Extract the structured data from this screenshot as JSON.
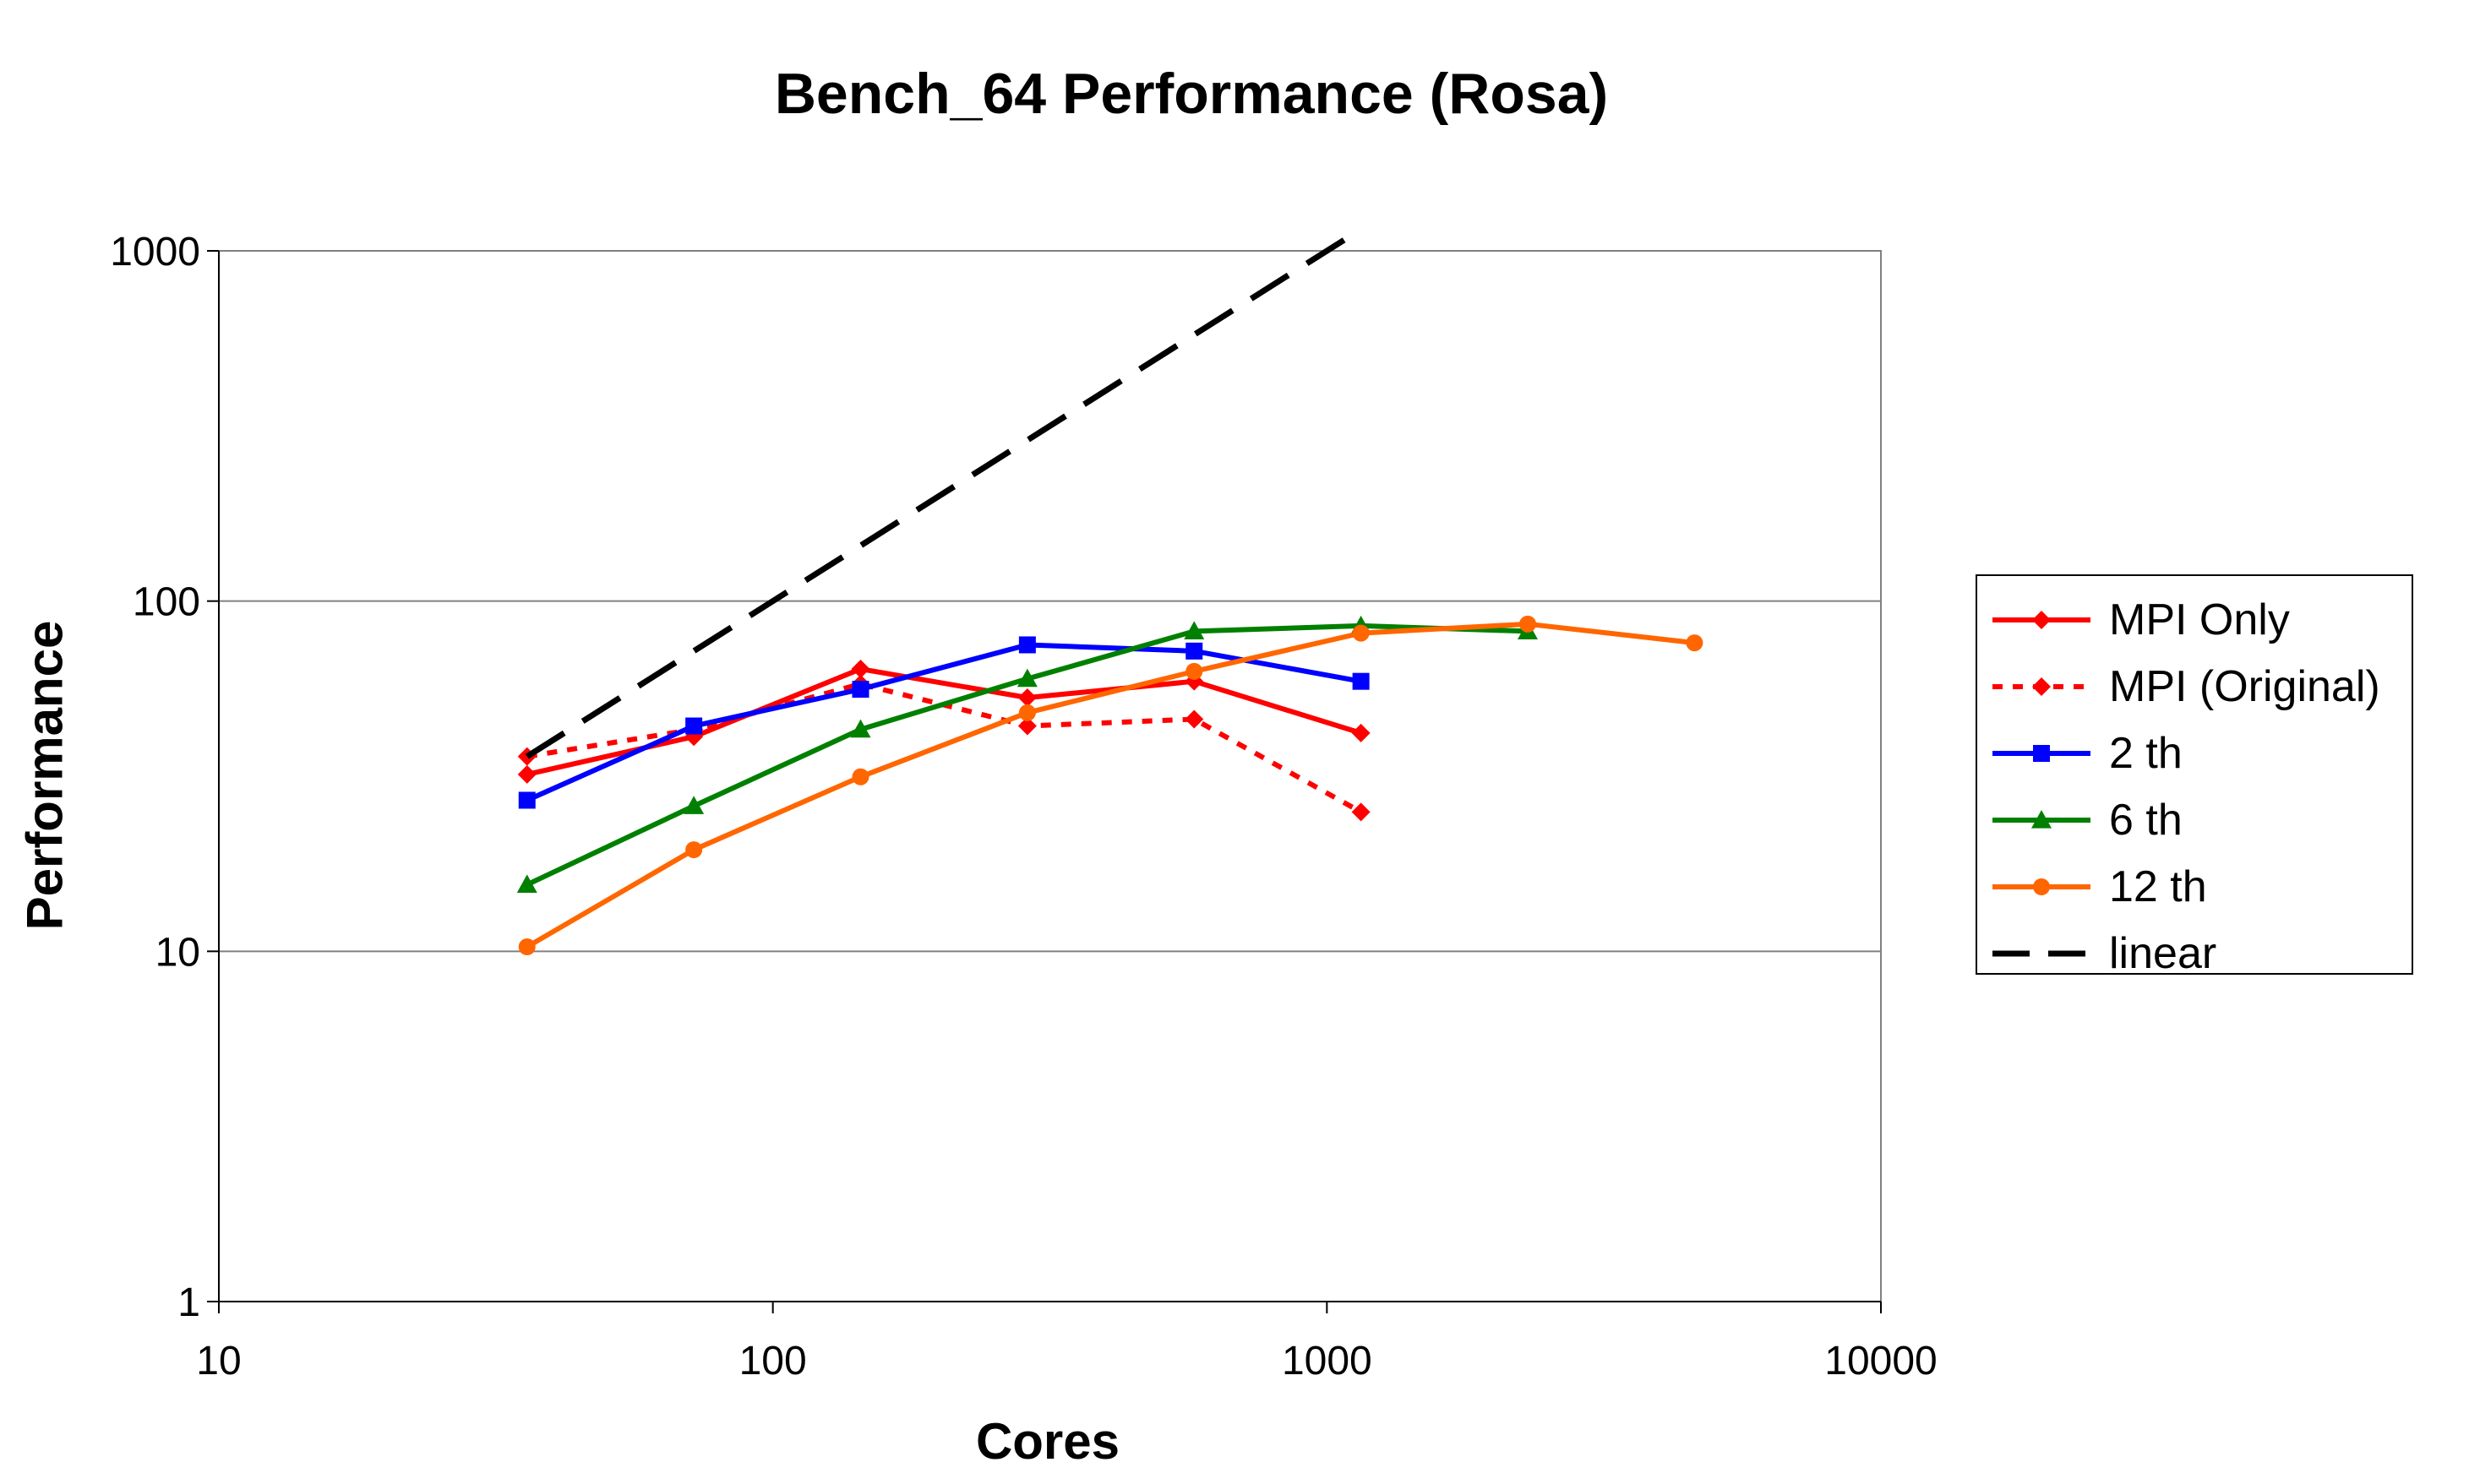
{
  "chart_data": {
    "type": "line",
    "title": "Bench_64 Performance (Rosa)",
    "xlabel": "Cores",
    "ylabel": "Performance",
    "xscale": "log",
    "yscale": "log",
    "xlim": [
      10,
      10000
    ],
    "ylim": [
      1,
      1000
    ],
    "xticks": [
      "10",
      "100",
      "1000",
      "10000"
    ],
    "yticks": [
      "1",
      "10",
      "100",
      "1000"
    ],
    "grid": "horizontal major",
    "legend_position": "right",
    "series": [
      {
        "name": "MPI Only",
        "color": "#ff0000",
        "dash": "solid",
        "marker": "diamond",
        "x": [
          36,
          72,
          144,
          288,
          576,
          1152
        ],
        "y": [
          32,
          41,
          64,
          53,
          59,
          42
        ]
      },
      {
        "name": "MPI (Original)",
        "color": "#ff0000",
        "dash": "dotted",
        "marker": "diamond",
        "x": [
          36,
          72,
          144,
          288,
          576,
          1152
        ],
        "y": [
          36,
          43,
          58,
          44,
          46,
          25
        ]
      },
      {
        "name": "2 th",
        "color": "#0000ff",
        "dash": "solid",
        "marker": "square",
        "x": [
          36,
          72,
          144,
          288,
          576,
          1152
        ],
        "y": [
          27,
          44,
          56,
          75,
          72,
          59
        ]
      },
      {
        "name": "6 th",
        "color": "#008000",
        "dash": "solid",
        "marker": "triangle",
        "x": [
          36,
          72,
          144,
          288,
          576,
          1152,
          2304
        ],
        "y": [
          15.5,
          26,
          43,
          60,
          82,
          85,
          82
        ]
      },
      {
        "name": "12 th",
        "color": "#ff6600",
        "dash": "solid",
        "marker": "circle",
        "x": [
          36,
          72,
          144,
          288,
          576,
          1152,
          2304,
          4608
        ],
        "y": [
          10.3,
          19.5,
          31.5,
          48,
          63,
          81,
          86,
          76
        ]
      },
      {
        "name": "linear",
        "color": "#000000",
        "dash": "dashed",
        "marker": "none",
        "x": [
          36,
          1080
        ],
        "y": [
          36,
          1080
        ]
      }
    ]
  }
}
